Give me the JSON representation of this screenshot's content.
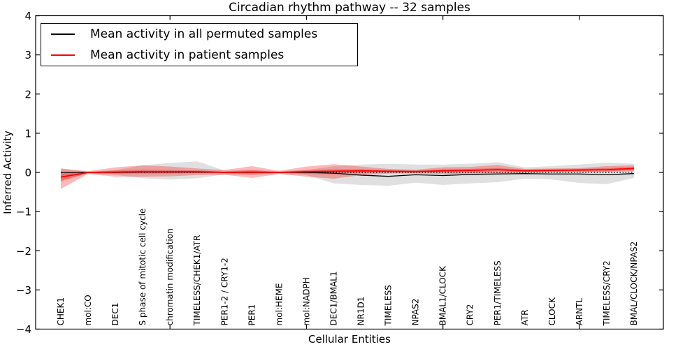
{
  "figure": {
    "title": "Circadian rhythm pathway -- 32 samples",
    "background_color": "#ffffff",
    "frame_color": "#000000"
  },
  "axes": {
    "ylabel": "Inferred Activity",
    "xlabel": "Cellular Entities"
  },
  "chart_data": {
    "type": "line",
    "title": "Circadian rhythm pathway -- 32 samples",
    "xlabel": "Cellular Entities",
    "ylabel": "Inferred Activity",
    "ylim": [
      -4,
      4
    ],
    "yticks": [
      -4,
      -3,
      -2,
      -1,
      0,
      1,
      2,
      3,
      4
    ],
    "x_major_tick_indices": [
      4,
      9,
      14,
      19
    ],
    "grid": false,
    "legend_position": "upper left",
    "zero_line": true,
    "categories": [
      "CHEK1",
      "mol:CO",
      "DEC1",
      "S phase of mitotic cell cycle",
      "chromatin modification",
      "TIMELESS/CHEK1/ATR",
      "PER1-2 / CRY1-2",
      "PER1",
      "mol:HEME",
      "mol:NADPH",
      "DEC1/BMAL1",
      "NR1D1",
      "TIMELESS",
      "NPAS2",
      "BMAL1/CLOCK",
      "CRY2",
      "PER1/TIMELESS",
      "ATR",
      "CLOCK",
      "ARNTL",
      "TIMELESS/CRY2",
      "BMAL/CLOCK/NPAS2"
    ],
    "series": [
      {
        "name": "Mean activity in all permuted samples",
        "color": "#000000",
        "values": [
          0,
          0,
          0,
          0.01,
          0.01,
          0.01,
          0,
          0,
          0,
          0,
          -0.02,
          -0.07,
          -0.1,
          -0.06,
          -0.08,
          -0.05,
          -0.04,
          -0.03,
          -0.04,
          -0.04,
          -0.06,
          -0.03
        ]
      },
      {
        "name": "Mean activity in patient samples",
        "color": "#ff0000",
        "values": [
          -0.12,
          0,
          0.01,
          0.02,
          0.02,
          0.02,
          0,
          0.01,
          0,
          0.02,
          0.03,
          0.04,
          0.03,
          0.02,
          0.04,
          0.05,
          0.07,
          0.04,
          0.05,
          0.06,
          0.07,
          0.1
        ]
      }
    ],
    "bands": [
      {
        "name": "permuted-samples-spread",
        "color": "#999999",
        "opacity": 0.3,
        "upper": [
          0.1,
          0.02,
          0.06,
          0.18,
          0.24,
          0.28,
          0.05,
          0.06,
          0.03,
          0.06,
          0.16,
          0.2,
          0.22,
          0.2,
          0.2,
          0.22,
          0.26,
          0.13,
          0.16,
          0.2,
          0.25,
          0.22
        ],
        "lower": [
          -0.2,
          -0.02,
          -0.06,
          -0.15,
          -0.18,
          -0.15,
          -0.05,
          -0.07,
          -0.03,
          -0.07,
          -0.28,
          -0.32,
          -0.34,
          -0.26,
          -0.32,
          -0.28,
          -0.25,
          -0.16,
          -0.18,
          -0.27,
          -0.3,
          -0.14
        ]
      },
      {
        "name": "patient-samples-spread",
        "color": "#ff0000",
        "opacity": 0.28,
        "upper": [
          0.1,
          0.03,
          0.13,
          0.18,
          0.15,
          0.1,
          0.06,
          0.16,
          0.04,
          0.15,
          0.21,
          0.15,
          0.09,
          0.07,
          0.13,
          0.14,
          0.19,
          0.09,
          0.1,
          0.11,
          0.16,
          0.18
        ],
        "lower": [
          -0.42,
          -0.04,
          -0.11,
          -0.11,
          -0.1,
          -0.07,
          -0.06,
          -0.14,
          -0.04,
          -0.11,
          -0.16,
          -0.07,
          -0.03,
          -0.02,
          -0.04,
          -0.03,
          -0.03,
          0,
          0,
          0.01,
          0.01,
          0.03
        ]
      },
      {
        "name": "patient-samples-inner-spread",
        "color": "#ff0000",
        "opacity": 0.3,
        "upper": [
          -0.02,
          0.01,
          0.05,
          0.07,
          0.06,
          0.05,
          0.02,
          0.06,
          0.01,
          0.06,
          0.08,
          0.08,
          0.06,
          0.05,
          0.08,
          0.09,
          0.11,
          0.07,
          0.08,
          0.09,
          0.11,
          0.14
        ],
        "lower": [
          -0.23,
          -0.02,
          -0.04,
          -0.03,
          -0.03,
          -0.02,
          -0.02,
          -0.05,
          -0.01,
          -0.04,
          -0.05,
          -0.01,
          0,
          0,
          0.01,
          0.01,
          0.03,
          0.01,
          0.02,
          0.03,
          0.03,
          0.06
        ]
      }
    ]
  }
}
